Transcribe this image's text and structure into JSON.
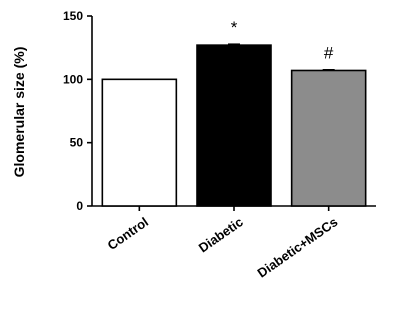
{
  "chart_data": {
    "type": "bar",
    "categories": [
      "Control",
      "Diabetic",
      "Diabetic+MSCs"
    ],
    "values": [
      100,
      127,
      107
    ],
    "errors": [
      0,
      0.8,
      0.6
    ],
    "bar_colors": [
      "#ffffff",
      "#000000",
      "#8c8c8c"
    ],
    "annotations": [
      "",
      "*",
      "#"
    ],
    "ylabel": "Glomerular size (%)",
    "ylim": [
      0,
      150
    ],
    "yticks": [
      0,
      50,
      100,
      150
    ],
    "grid": false,
    "legend": "none"
  }
}
